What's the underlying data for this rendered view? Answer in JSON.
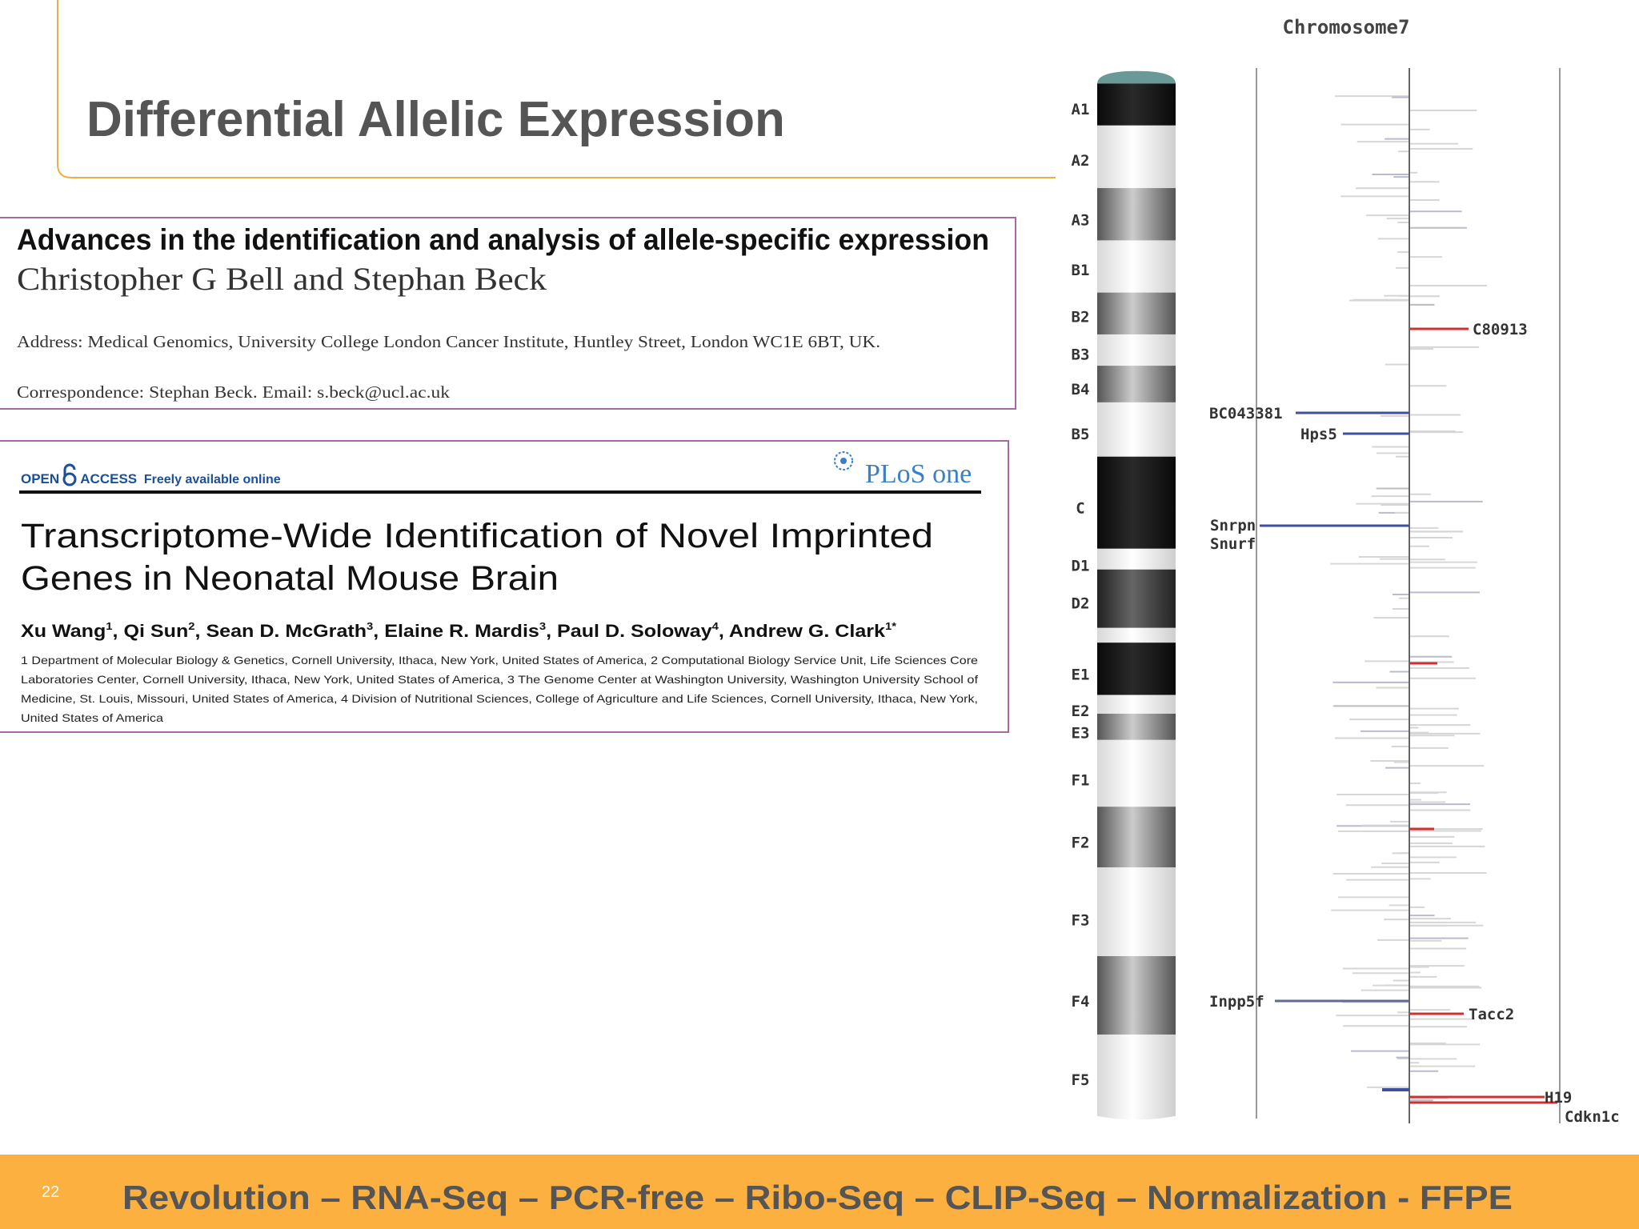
{
  "header": {
    "title": "Differential Allelic Expression"
  },
  "paper1": {
    "title": "Advances in the identification and analysis of allele-specific expression",
    "authors": "Christopher G Bell and Stephan Beck",
    "address": "Address: Medical Genomics, University College London Cancer Institute, Huntley Street, London WC1E 6BT, UK.",
    "correspondence": "Correspondence: Stephan Beck. Email: s.beck@ucl.ac.uk"
  },
  "paper2": {
    "badge": {
      "open": "OPEN",
      "access": "ACCESS",
      "tagline": "Freely available online"
    },
    "journal": "PLoS one",
    "title_lines": [
      "Transcriptome-Wide Identification of Novel Imprinted",
      "Genes in Neonatal Mouse Brain"
    ],
    "authors": [
      {
        "name": "Xu Wang",
        "sup": "1"
      },
      {
        "name": ", Qi Sun",
        "sup": "2"
      },
      {
        "name": ", Sean D. McGrath",
        "sup": "3"
      },
      {
        "name": ", Elaine R. Mardis",
        "sup": "3"
      },
      {
        "name": ", Paul D. Soloway",
        "sup": "4"
      },
      {
        "name": ", Andrew G. Clark",
        "sup": "1*"
      }
    ],
    "affiliations": [
      "1 Department of Molecular Biology & Genetics, Cornell University, Ithaca, New York, United States of America, 2 Computational Biology Service Unit, Life Sciences Core",
      "Laboratories Center, Cornell University, Ithaca, New York, United States of America, 3 The Genome Center at Washington University, Washington University School of",
      "Medicine, St. Louis, Missouri, United States of America, 4 Division of Nutritional Sciences, College of Agriculture and Life Sciences, Cornell University, Ithaca, New York,",
      "United States of America"
    ]
  },
  "figure": {
    "title": "Chromosome7",
    "bands": [
      "A1",
      "A2",
      "A3",
      "B1",
      "B2",
      "B3",
      "B4",
      "B5",
      "C",
      "D1",
      "D2",
      "E1",
      "E2",
      "E3",
      "F1",
      "F2",
      "F3",
      "F4",
      "F5"
    ],
    "genes": [
      "C80913",
      "BC043381",
      "Hps5",
      "Snrpn",
      "Snurf",
      "Inpp5f",
      "Tacc2",
      "H19",
      "Cdkn1c"
    ]
  },
  "footer": {
    "page_number": "22",
    "text": "Revolution – RNA-Seq – PCR-free – Ribo-Seq – CLIP-Seq – Normalization - FFPE"
  }
}
